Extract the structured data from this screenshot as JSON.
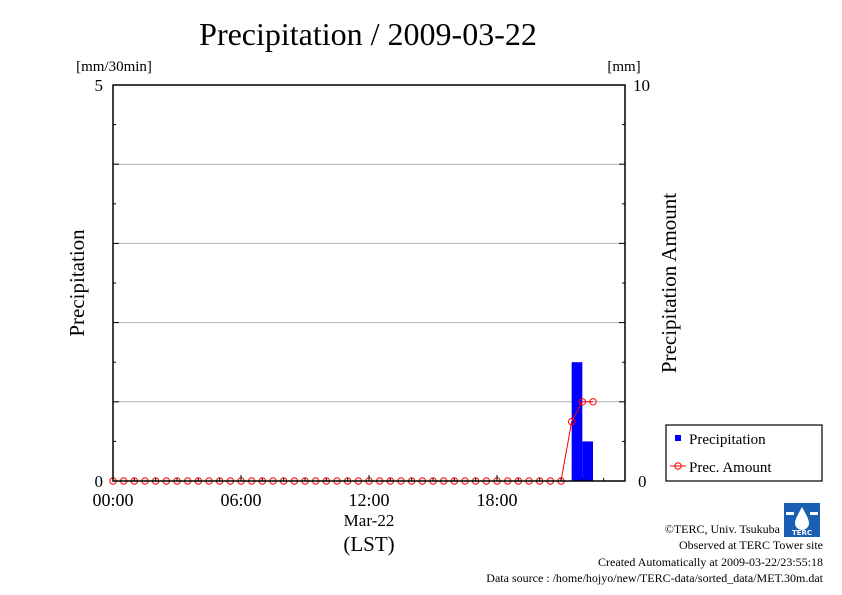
{
  "chart_data": {
    "type": "bar",
    "title": "Precipitation / 2009-03-22",
    "ylabel": "Precipitation",
    "ylabel_right": "Precipitation Amount",
    "yunit_left": "[mm/30min]",
    "yunit_right": "[mm]",
    "ylim_left": [
      0,
      5
    ],
    "ylim_right": [
      0,
      10
    ],
    "left_tick_labels": [
      "0",
      "5"
    ],
    "right_tick_labels": [
      "0",
      "10"
    ],
    "xlim_hours": [
      0,
      24
    ],
    "x_tick_labels": [
      "00:00",
      "06:00",
      "12:00",
      "18:00"
    ],
    "x_date_label": "Mar-22",
    "xlabel": "(LST)",
    "grid": true,
    "legend_position": "bottom-right",
    "series": [
      {
        "name": "Precipitation",
        "kind": "bar",
        "axis": "left",
        "color": "#0000ff",
        "x": [
          "00:00",
          "00:30",
          "01:00",
          "01:30",
          "02:00",
          "02:30",
          "03:00",
          "03:30",
          "04:00",
          "04:30",
          "05:00",
          "05:30",
          "06:00",
          "06:30",
          "07:00",
          "07:30",
          "08:00",
          "08:30",
          "09:00",
          "09:30",
          "10:00",
          "10:30",
          "11:00",
          "11:30",
          "12:00",
          "12:30",
          "13:00",
          "13:30",
          "14:00",
          "14:30",
          "15:00",
          "15:30",
          "16:00",
          "16:30",
          "17:00",
          "17:30",
          "18:00",
          "18:30",
          "19:00",
          "19:30",
          "20:00",
          "20:30",
          "21:00",
          "21:30",
          "22:00",
          "22:30",
          "23:00",
          "23:30"
        ],
        "values": [
          0,
          0,
          0,
          0,
          0,
          0,
          0,
          0,
          0,
          0,
          0,
          0,
          0,
          0,
          0,
          0,
          0,
          0,
          0,
          0,
          0,
          0,
          0,
          0,
          0,
          0,
          0,
          0,
          0,
          0,
          0,
          0,
          0,
          0,
          0,
          0,
          0,
          0,
          0,
          0,
          0,
          0,
          0,
          1.5,
          0.5,
          0,
          0,
          0
        ]
      },
      {
        "name": "Prec. Amount",
        "kind": "line",
        "axis": "right",
        "color": "#ff0000",
        "x": [
          "00:00",
          "00:30",
          "01:00",
          "01:30",
          "02:00",
          "02:30",
          "03:00",
          "03:30",
          "04:00",
          "04:30",
          "05:00",
          "05:30",
          "06:00",
          "06:30",
          "07:00",
          "07:30",
          "08:00",
          "08:30",
          "09:00",
          "09:30",
          "10:00",
          "10:30",
          "11:00",
          "11:30",
          "12:00",
          "12:30",
          "13:00",
          "13:30",
          "14:00",
          "14:30",
          "15:00",
          "15:30",
          "16:00",
          "16:30",
          "17:00",
          "17:30",
          "18:00",
          "18:30",
          "19:00",
          "19:30",
          "20:00",
          "20:30",
          "21:00",
          "21:30",
          "22:00",
          "22:30"
        ],
        "values": [
          0,
          0,
          0,
          0,
          0,
          0,
          0,
          0,
          0,
          0,
          0,
          0,
          0,
          0,
          0,
          0,
          0,
          0,
          0,
          0,
          0,
          0,
          0,
          0,
          0,
          0,
          0,
          0,
          0,
          0,
          0,
          0,
          0,
          0,
          0,
          0,
          0,
          0,
          0,
          0,
          0,
          0,
          0,
          1.5,
          2,
          2
        ]
      }
    ]
  },
  "credits": {
    "copyright": "©TERC, Univ. Tsukuba",
    "site": "Observed at TERC Tower site",
    "created": "Created Automatically at 2009-03-22/23:55:18",
    "source": "Data source : /home/hojyo/new/TERC-data/sorted_data/MET.30m.dat",
    "logo_text": "TERC"
  },
  "colors": {
    "bar": "#0000ff",
    "line": "#ff0000",
    "grid": "#b4b4b4",
    "logo": "#1a5fb4"
  }
}
